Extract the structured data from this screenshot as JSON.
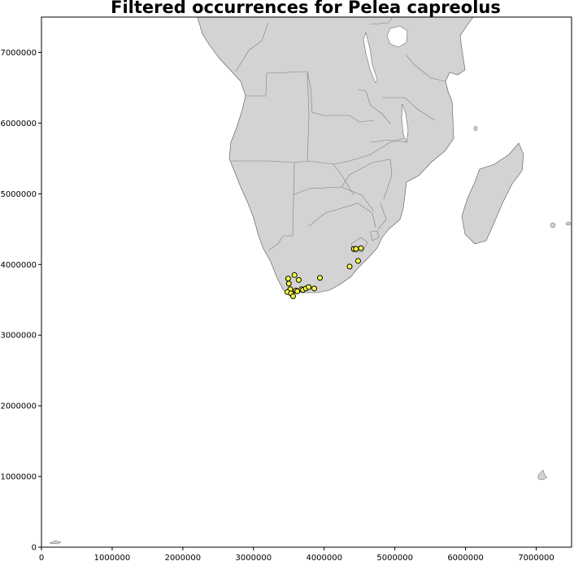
{
  "title": "Filtered occurrences for Pelea capreolus",
  "colors": {
    "land": "#d3d3d3",
    "border": "#7f7f7f",
    "coast": "#555555",
    "water": "#ffffff",
    "marker_fill": "#ffff44",
    "marker_edge": "#000000"
  },
  "chart_data": {
    "type": "scatter",
    "title": "Filtered occurrences for Pelea capreolus",
    "xlabel": "",
    "ylabel": "",
    "xlim": [
      0,
      7500000
    ],
    "ylim": [
      0,
      7500000
    ],
    "xticks": [
      0,
      1000000,
      2000000,
      3000000,
      4000000,
      5000000,
      6000000,
      7000000
    ],
    "yticks": [
      0,
      1000000,
      2000000,
      3000000,
      4000000,
      5000000,
      6000000,
      7000000
    ],
    "xtick_labels": [
      "0",
      "1000000",
      "2000000",
      "3000000",
      "4000000",
      "5000000",
      "6000000",
      "7000000"
    ],
    "ytick_labels": [
      "0",
      "1000000",
      "2000000",
      "3000000",
      "4000000",
      "5000000",
      "6000000",
      "7000000"
    ],
    "grid": false,
    "points": [
      {
        "x": 3490000,
        "y": 3800000
      },
      {
        "x": 3500000,
        "y": 3730000
      },
      {
        "x": 3520000,
        "y": 3650000
      },
      {
        "x": 3480000,
        "y": 3610000
      },
      {
        "x": 3530000,
        "y": 3590000
      },
      {
        "x": 3560000,
        "y": 3550000
      },
      {
        "x": 3580000,
        "y": 3850000
      },
      {
        "x": 3600000,
        "y": 3630000
      },
      {
        "x": 3620000,
        "y": 3620000
      },
      {
        "x": 3640000,
        "y": 3780000
      },
      {
        "x": 3680000,
        "y": 3650000
      },
      {
        "x": 3700000,
        "y": 3640000
      },
      {
        "x": 3740000,
        "y": 3660000
      },
      {
        "x": 3780000,
        "y": 3680000
      },
      {
        "x": 3860000,
        "y": 3660000
      },
      {
        "x": 3940000,
        "y": 3810000
      },
      {
        "x": 4360000,
        "y": 3970000
      },
      {
        "x": 4420000,
        "y": 4220000
      },
      {
        "x": 4450000,
        "y": 4220000
      },
      {
        "x": 4480000,
        "y": 4050000
      },
      {
        "x": 4520000,
        "y": 4230000
      }
    ]
  }
}
